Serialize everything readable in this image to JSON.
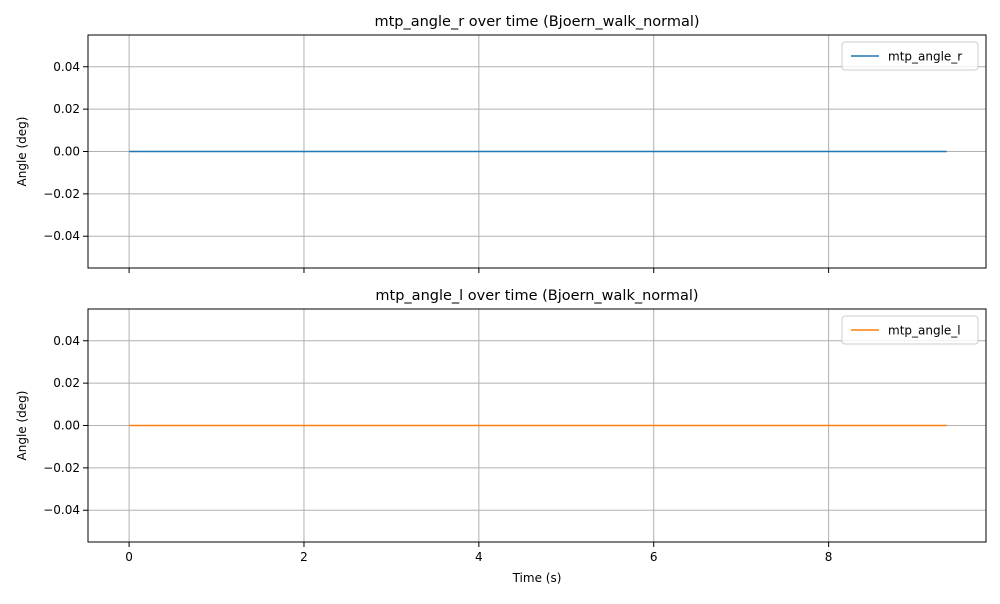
{
  "chart_data": [
    {
      "type": "line",
      "title": "mtp_angle_r over time (Bjoern_walk_normal)",
      "xlabel": "",
      "ylabel": "Angle (deg)",
      "xlim": [
        -0.47,
        9.8
      ],
      "ylim": [
        -0.055,
        0.055
      ],
      "xticks": [
        0,
        2,
        4,
        6,
        8
      ],
      "xtick_labels_visible": false,
      "yticks": [
        0.04,
        0.02,
        0.0,
        -0.02,
        -0.04
      ],
      "ytick_labels": [
        "0.04",
        "0.02",
        "0.00",
        "−0.02",
        "−0.04"
      ],
      "grid": true,
      "legend_position": "upper right",
      "series": [
        {
          "name": "mtp_angle_r",
          "color": "#1f77b4",
          "x": [
            0,
            9.35
          ],
          "y": [
            0,
            0
          ]
        }
      ]
    },
    {
      "type": "line",
      "title": "mtp_angle_l over time (Bjoern_walk_normal)",
      "xlabel": "Time (s)",
      "ylabel": "Angle (deg)",
      "xlim": [
        -0.47,
        9.8
      ],
      "ylim": [
        -0.055,
        0.055
      ],
      "xticks": [
        0,
        2,
        4,
        6,
        8
      ],
      "xtick_labels": [
        "0",
        "2",
        "4",
        "6",
        "8"
      ],
      "xtick_labels_visible": true,
      "yticks": [
        0.04,
        0.02,
        0.0,
        -0.02,
        -0.04
      ],
      "ytick_labels": [
        "0.04",
        "0.02",
        "0.00",
        "−0.02",
        "−0.04"
      ],
      "grid": true,
      "legend_position": "upper right",
      "series": [
        {
          "name": "mtp_angle_l",
          "color": "#ff7f0e",
          "x": [
            0,
            9.35
          ],
          "y": [
            0,
            0
          ]
        }
      ]
    }
  ]
}
